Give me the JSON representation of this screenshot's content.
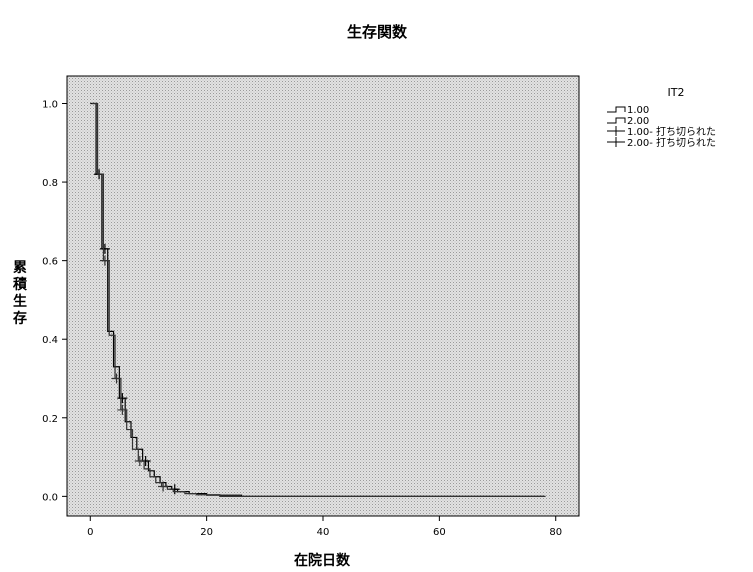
{
  "chart_data": {
    "type": "line",
    "title": "生存関数",
    "xlabel": "在院日数",
    "ylabel": "累積生存",
    "xlim": [
      -4,
      84
    ],
    "ylim": [
      -0.05,
      1.07
    ],
    "xticks": [
      0,
      20,
      40,
      60,
      80
    ],
    "yticks": [
      0.0,
      0.2,
      0.4,
      0.6,
      0.8,
      1.0
    ],
    "ytick_labels": [
      "0.0",
      "0.2",
      "0.4",
      "0.6",
      "0.8",
      "1.0"
    ],
    "grid": false,
    "background": "dotted-gray",
    "legend": {
      "title": "IT2",
      "position": "right",
      "entries": [
        "1.00",
        "2.00",
        "1.00- 打ち切られた",
        "2.00- 打ち切られた"
      ]
    },
    "series": [
      {
        "name": "1.00",
        "step_x": [
          0,
          1,
          2,
          3,
          4,
          5,
          6,
          7,
          8,
          9,
          10,
          11,
          12,
          13,
          14,
          15,
          17,
          20,
          26,
          78
        ],
        "step_y": [
          1.0,
          0.82,
          0.63,
          0.42,
          0.33,
          0.25,
          0.19,
          0.15,
          0.12,
          0.09,
          0.065,
          0.05,
          0.035,
          0.025,
          0.018,
          0.012,
          0.007,
          0.003,
          0.0,
          0.0
        ],
        "censored_x": [
          1,
          2,
          5,
          9,
          14
        ],
        "censored_y": [
          0.82,
          0.63,
          0.25,
          0.09,
          0.018
        ]
      },
      {
        "name": "2.00",
        "step_x": [
          0,
          1,
          2,
          3,
          4,
          5,
          6,
          7,
          8,
          9,
          10,
          11,
          12,
          13,
          14,
          16,
          18,
          22,
          78
        ],
        "step_y": [
          1.0,
          0.82,
          0.6,
          0.41,
          0.3,
          0.22,
          0.17,
          0.12,
          0.09,
          0.07,
          0.05,
          0.035,
          0.025,
          0.018,
          0.012,
          0.007,
          0.004,
          0.0,
          0.0
        ],
        "censored_x": [
          2,
          4,
          5,
          8,
          12
        ],
        "censored_y": [
          0.6,
          0.3,
          0.22,
          0.09,
          0.025
        ]
      }
    ]
  }
}
